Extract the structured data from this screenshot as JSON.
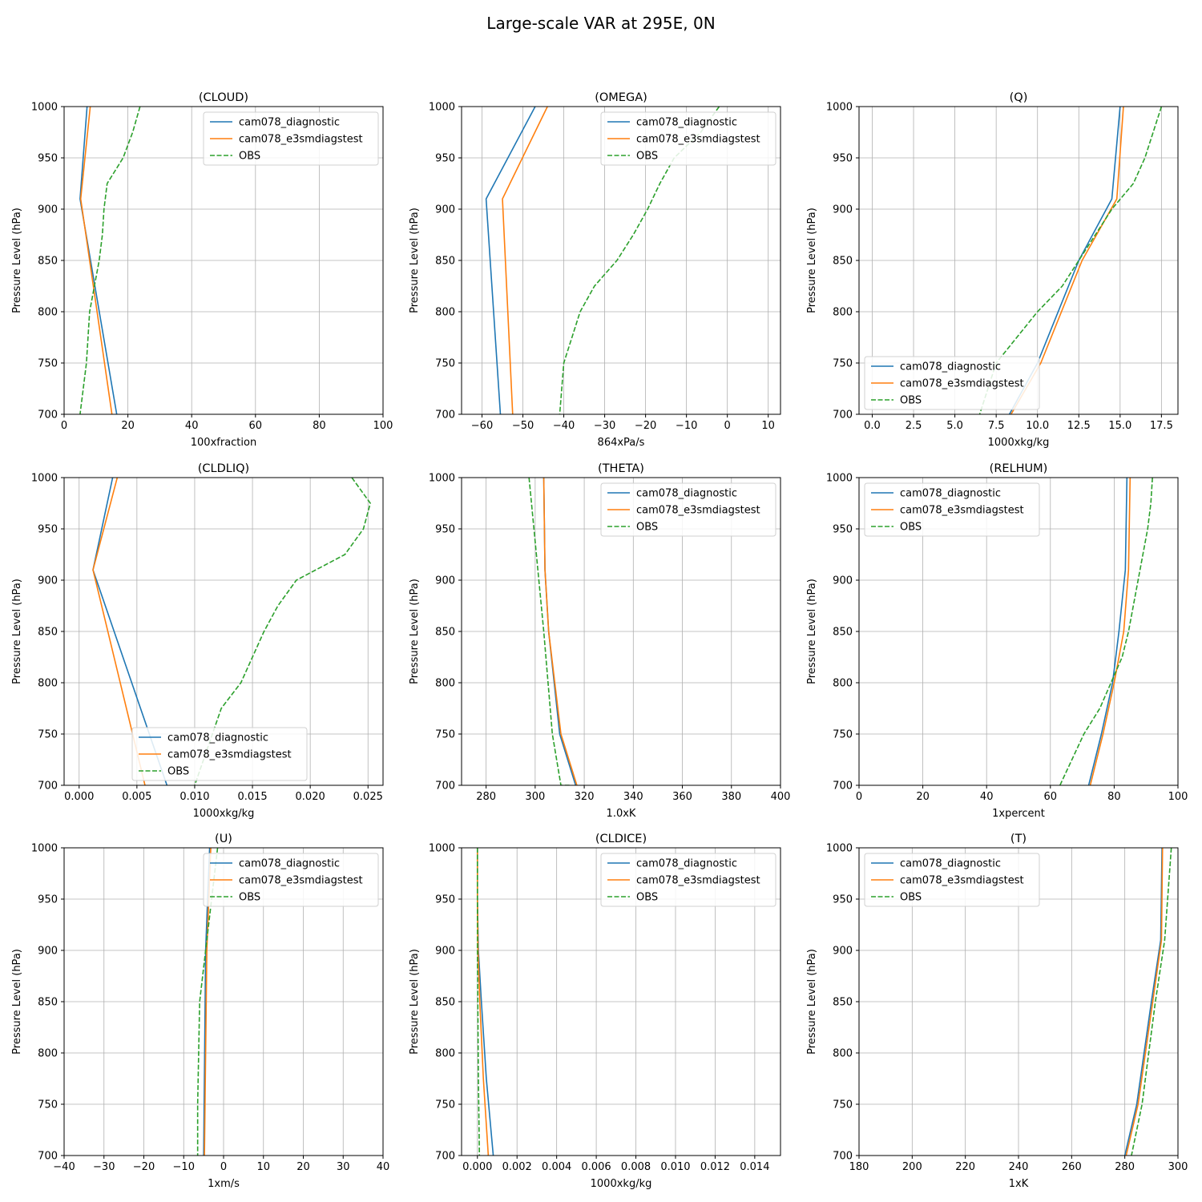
{
  "title": "Large-scale VAR at 295E, 0N",
  "colors": {
    "cam078_diagnostic": "#1f77b4",
    "cam078_e3smdiagstest": "#ff7f0e",
    "OBS": "#2ca02c"
  },
  "chart_data": [
    {
      "type": "line",
      "title": "(CLOUD)",
      "xlabel": "100xfraction",
      "ylabel": "Pressure Level (hPa)",
      "xlim": [
        0,
        100
      ],
      "ylim": [
        1000,
        700
      ],
      "xticks": [
        0,
        20,
        40,
        60,
        80,
        100
      ],
      "xtick_labels": [
        "0",
        "20",
        "40",
        "60",
        "80",
        "100"
      ],
      "yticks": [
        700,
        750,
        800,
        850,
        900,
        950,
        1000
      ],
      "ytick_labels": [
        "700",
        "750",
        "800",
        "850",
        "900",
        "950",
        "1000"
      ],
      "grid": true,
      "legend": "upper right",
      "series": [
        {
          "name": "cam078_diagnostic",
          "style": "solid",
          "x": [
            7.2,
            5.0,
            16.5
          ],
          "y": [
            1000,
            910,
            700
          ]
        },
        {
          "name": "cam078_e3smdiagstest",
          "style": "solid",
          "x": [
            8.2,
            5.2,
            15.0
          ],
          "y": [
            1000,
            910,
            700
          ]
        },
        {
          "name": "OBS",
          "style": "dashed",
          "x": [
            23.8,
            21.5,
            18.5,
            13.5,
            12.5,
            12.0,
            11.0,
            9.5,
            8.0,
            7.0,
            5.0
          ],
          "y": [
            1000,
            975,
            950,
            925,
            900,
            875,
            850,
            825,
            800,
            750,
            700
          ]
        }
      ]
    },
    {
      "type": "line",
      "title": "(OMEGA)",
      "xlabel": "864xPa/s",
      "ylabel": "Pressure Level (hPa)",
      "xlim": [
        -65,
        13
      ],
      "ylim": [
        1000,
        700
      ],
      "xticks": [
        -60,
        -50,
        -40,
        -30,
        -20,
        -10,
        0,
        10
      ],
      "xtick_labels": [
        "−60",
        "−50",
        "−40",
        "−30",
        "−20",
        "−10",
        "0",
        "10"
      ],
      "yticks": [
        700,
        750,
        800,
        850,
        900,
        950,
        1000
      ],
      "ytick_labels": [
        "700",
        "750",
        "800",
        "850",
        "900",
        "950",
        "1000"
      ],
      "grid": true,
      "legend": "upper right",
      "series": [
        {
          "name": "cam078_diagnostic",
          "style": "solid",
          "x": [
            -47.0,
            -59.0,
            -55.5
          ],
          "y": [
            1000,
            910,
            700
          ]
        },
        {
          "name": "cam078_e3smdiagstest",
          "style": "solid",
          "x": [
            -44.0,
            -55.0,
            -52.5
          ],
          "y": [
            1000,
            910,
            700
          ]
        },
        {
          "name": "OBS",
          "style": "dashed",
          "x": [
            -2.0,
            -6.5,
            -13.0,
            -16.5,
            -19.5,
            -23.0,
            -27.0,
            -32.5,
            -36.0,
            -40.0,
            -41.0
          ],
          "y": [
            1000,
            975,
            950,
            925,
            900,
            875,
            850,
            825,
            800,
            750,
            700
          ]
        }
      ]
    },
    {
      "type": "line",
      "title": "(Q)",
      "xlabel": "1000xkg/kg",
      "ylabel": "Pressure Level (hPa)",
      "xlim": [
        -0.8,
        18.5
      ],
      "ylim": [
        1000,
        700
      ],
      "xticks": [
        0,
        2.5,
        5,
        7.5,
        10,
        12.5,
        15,
        17.5
      ],
      "xtick_labels": [
        "0.0",
        "2.5",
        "5.0",
        "7.5",
        "10.0",
        "12.5",
        "15.0",
        "17.5"
      ],
      "yticks": [
        700,
        750,
        800,
        850,
        900,
        950,
        1000
      ],
      "ytick_labels": [
        "700",
        "750",
        "800",
        "850",
        "900",
        "950",
        "1000"
      ],
      "grid": true,
      "legend": "lower left",
      "series": [
        {
          "name": "cam078_diagnostic",
          "style": "solid",
          "x": [
            15.0,
            14.5,
            12.5,
            10.0,
            8.3
          ],
          "y": [
            1000,
            910,
            850,
            750,
            700
          ]
        },
        {
          "name": "cam078_e3smdiagstest",
          "style": "solid",
          "x": [
            15.2,
            14.8,
            12.7,
            10.2,
            8.4
          ],
          "y": [
            1000,
            910,
            850,
            750,
            700
          ]
        },
        {
          "name": "OBS",
          "style": "dashed",
          "x": [
            17.5,
            17.0,
            16.5,
            15.8,
            14.5,
            13.5,
            12.5,
            11.5,
            10.0,
            7.5,
            6.5
          ],
          "y": [
            1000,
            975,
            950,
            925,
            900,
            875,
            850,
            825,
            800,
            750,
            700
          ]
        }
      ]
    },
    {
      "type": "line",
      "title": "(CLDLIQ)",
      "xlabel": "1000xkg/kg",
      "ylabel": "Pressure Level (hPa)",
      "xlim": [
        -0.0013,
        0.0263
      ],
      "ylim": [
        1000,
        700
      ],
      "xticks": [
        0,
        0.005,
        0.01,
        0.015,
        0.02,
        0.025
      ],
      "xtick_labels": [
        "0.000",
        "0.005",
        "0.010",
        "0.015",
        "0.020",
        "0.025"
      ],
      "yticks": [
        700,
        750,
        800,
        850,
        900,
        950,
        1000
      ],
      "ytick_labels": [
        "700",
        "750",
        "800",
        "850",
        "900",
        "950",
        "1000"
      ],
      "grid": true,
      "legend": "lower center",
      "series": [
        {
          "name": "cam078_diagnostic",
          "style": "solid",
          "x": [
            0.0029,
            0.0012,
            0.0076
          ],
          "y": [
            1000,
            910,
            700
          ]
        },
        {
          "name": "cam078_e3smdiagstest",
          "style": "solid",
          "x": [
            0.0033,
            0.0012,
            0.0057
          ],
          "y": [
            1000,
            910,
            700
          ]
        },
        {
          "name": "OBS",
          "style": "dashed",
          "x": [
            0.0236,
            0.0252,
            0.0246,
            0.023,
            0.0188,
            0.0172,
            0.016,
            0.015,
            0.014,
            0.0123,
            0.01
          ],
          "y": [
            1000,
            975,
            950,
            925,
            900,
            875,
            850,
            825,
            800,
            775,
            700
          ]
        }
      ]
    },
    {
      "type": "line",
      "title": "(THETA)",
      "xlabel": "1.0xK",
      "ylabel": "Pressure Level (hPa)",
      "xlim": [
        270,
        400
      ],
      "ylim": [
        1000,
        700
      ],
      "xticks": [
        280,
        300,
        320,
        340,
        360,
        380,
        400
      ],
      "xtick_labels": [
        "280",
        "300",
        "320",
        "340",
        "360",
        "380",
        "400"
      ],
      "yticks": [
        700,
        750,
        800,
        850,
        900,
        950,
        1000
      ],
      "ytick_labels": [
        "700",
        "750",
        "800",
        "850",
        "900",
        "950",
        "1000"
      ],
      "grid": true,
      "legend": "upper right",
      "series": [
        {
          "name": "cam078_diagnostic",
          "style": "solid",
          "x": [
            303.5,
            304.0,
            305.5,
            310.0,
            316.5
          ],
          "y": [
            1000,
            910,
            850,
            750,
            700
          ]
        },
        {
          "name": "cam078_e3smdiagstest",
          "style": "solid",
          "x": [
            303.5,
            304.0,
            305.5,
            310.5,
            317.0
          ],
          "y": [
            1000,
            910,
            850,
            750,
            700
          ]
        },
        {
          "name": "OBS",
          "style": "dashed",
          "x": [
            297.5,
            299.5,
            301.5,
            303.5,
            307.0,
            310.5,
            314.0
          ],
          "y": [
            1000,
            950,
            900,
            850,
            750,
            700,
            700
          ]
        }
      ]
    },
    {
      "type": "line",
      "title": "(RELHUM)",
      "xlabel": "1xpercent",
      "ylabel": "Pressure Level (hPa)",
      "xlim": [
        0,
        100
      ],
      "ylim": [
        1000,
        700
      ],
      "xticks": [
        0,
        20,
        40,
        60,
        80,
        100
      ],
      "xtick_labels": [
        "0",
        "20",
        "40",
        "60",
        "80",
        "100"
      ],
      "yticks": [
        700,
        750,
        800,
        850,
        900,
        950,
        1000
      ],
      "ytick_labels": [
        "700",
        "750",
        "800",
        "850",
        "900",
        "950",
        "1000"
      ],
      "grid": true,
      "legend": "upper left",
      "series": [
        {
          "name": "cam078_diagnostic",
          "style": "solid",
          "x": [
            84.0,
            83.5,
            81.5,
            79.5,
            76.0,
            72.0
          ],
          "y": [
            1000,
            910,
            850,
            800,
            750,
            700
          ]
        },
        {
          "name": "cam078_e3smdiagstest",
          "style": "solid",
          "x": [
            85.0,
            84.5,
            83.0,
            80.0,
            76.5,
            72.5
          ],
          "y": [
            1000,
            910,
            850,
            800,
            750,
            700
          ]
        },
        {
          "name": "OBS",
          "style": "dashed",
          "x": [
            92.0,
            91.5,
            90.5,
            89.0,
            87.5,
            86.0,
            84.5,
            82.5,
            79.0,
            75.5,
            70.5,
            63.0
          ],
          "y": [
            1000,
            975,
            950,
            925,
            900,
            875,
            850,
            825,
            800,
            775,
            750,
            700
          ]
        }
      ]
    },
    {
      "type": "line",
      "title": "(U)",
      "xlabel": "1xm/s",
      "ylabel": "Pressure Level (hPa)",
      "xlim": [
        -40,
        40
      ],
      "ylim": [
        1000,
        700
      ],
      "xticks": [
        -40,
        -30,
        -20,
        -10,
        0,
        10,
        20,
        30,
        40
      ],
      "xtick_labels": [
        "−40",
        "−30",
        "−20",
        "−10",
        "0",
        "10",
        "20",
        "30",
        "40"
      ],
      "yticks": [
        700,
        750,
        800,
        850,
        900,
        950,
        1000
      ],
      "ytick_labels": [
        "700",
        "750",
        "800",
        "850",
        "900",
        "950",
        "1000"
      ],
      "grid": true,
      "legend": "upper right",
      "series": [
        {
          "name": "cam078_diagnostic",
          "style": "solid",
          "x": [
            -3.5,
            -4.5,
            -5.0
          ],
          "y": [
            1000,
            900,
            700
          ]
        },
        {
          "name": "cam078_e3smdiagstest",
          "style": "solid",
          "x": [
            -3.2,
            -4.2,
            -4.8
          ],
          "y": [
            1000,
            900,
            700
          ]
        },
        {
          "name": "OBS",
          "style": "dashed",
          "x": [
            -1.5,
            -3.0,
            -4.5,
            -6.0,
            -6.5,
            -6.5
          ],
          "y": [
            1000,
            950,
            900,
            850,
            750,
            700
          ]
        }
      ]
    },
    {
      "type": "line",
      "title": "(CLDICE)",
      "xlabel": "1000xkg/kg",
      "ylabel": "Pressure Level (hPa)",
      "xlim": [
        -0.0008,
        0.0153
      ],
      "ylim": [
        1000,
        700
      ],
      "xticks": [
        0,
        0.002,
        0.004,
        0.006,
        0.008,
        0.01,
        0.012,
        0.014
      ],
      "xtick_labels": [
        "0.000",
        "0.002",
        "0.004",
        "0.006",
        "0.008",
        "0.010",
        "0.012",
        "0.014"
      ],
      "yticks": [
        700,
        750,
        800,
        850,
        900,
        950,
        1000
      ],
      "ytick_labels": [
        "700",
        "750",
        "800",
        "850",
        "900",
        "950",
        "1000"
      ],
      "grid": true,
      "legend": "upper right",
      "series": [
        {
          "name": "cam078_diagnostic",
          "style": "solid",
          "x": [
            0.0,
            0.0,
            5e-05,
            0.0002,
            0.00045,
            0.0008
          ],
          "y": [
            1000,
            950,
            900,
            850,
            775,
            700
          ]
        },
        {
          "name": "cam078_e3smdiagstest",
          "style": "solid",
          "x": [
            0.0,
            0.0,
            3e-05,
            0.00012,
            0.0003,
            0.00055
          ],
          "y": [
            1000,
            950,
            900,
            850,
            775,
            700
          ]
        },
        {
          "name": "OBS",
          "style": "dashed",
          "x": [
            0.0,
            0.0,
            0.0,
            2e-05,
            5e-05,
            0.0001
          ],
          "y": [
            1000,
            950,
            900,
            850,
            775,
            700
          ]
        }
      ]
    },
    {
      "type": "line",
      "title": "(T)",
      "xlabel": "1xK",
      "ylabel": "Pressure Level (hPa)",
      "xlim": [
        180,
        300
      ],
      "ylim": [
        1000,
        700
      ],
      "xticks": [
        180,
        200,
        220,
        240,
        260,
        280,
        300
      ],
      "xtick_labels": [
        "180",
        "200",
        "220",
        "240",
        "260",
        "280",
        "300"
      ],
      "yticks": [
        700,
        750,
        800,
        850,
        900,
        950,
        1000
      ],
      "ytick_labels": [
        "700",
        "750",
        "800",
        "850",
        "900",
        "950",
        "1000"
      ],
      "grid": true,
      "legend": "upper left",
      "series": [
        {
          "name": "cam078_diagnostic",
          "style": "solid",
          "x": [
            294.0,
            293.5,
            290.0,
            284.5,
            280.0
          ],
          "y": [
            1000,
            910,
            850,
            750,
            700
          ]
        },
        {
          "name": "cam078_e3smdiagstest",
          "style": "solid",
          "x": [
            294.2,
            293.8,
            290.5,
            285.0,
            280.5
          ],
          "y": [
            1000,
            910,
            850,
            750,
            700
          ]
        },
        {
          "name": "OBS",
          "style": "dashed",
          "x": [
            297.5,
            295.0,
            291.5,
            286.5,
            282.5
          ],
          "y": [
            1000,
            910,
            850,
            750,
            700
          ]
        }
      ]
    }
  ]
}
